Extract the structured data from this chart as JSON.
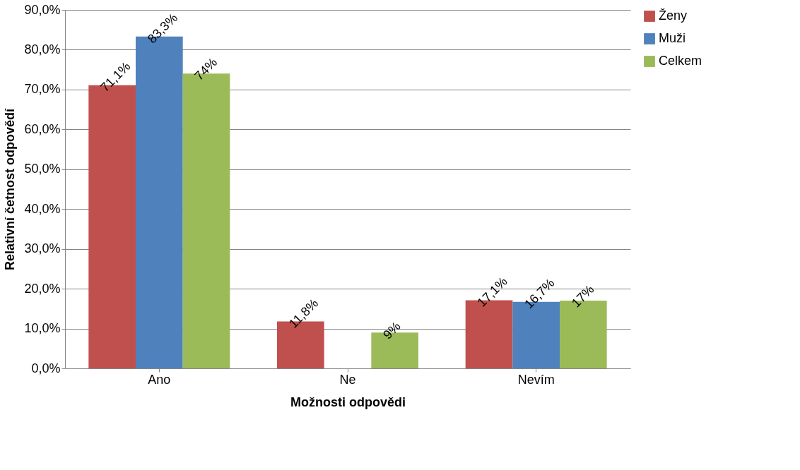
{
  "chart_data": {
    "type": "bar",
    "xlabel": "Možnosti odpovědi",
    "ylabel": "Relativní četnost odpovědí",
    "categories": [
      "Ano",
      "Ne",
      "Nevím"
    ],
    "series": [
      {
        "name": "Ženy",
        "color": "#c0504d",
        "values": [
          71.1,
          11.8,
          17.1
        ],
        "value_labels": [
          "71,1%",
          "11,8%",
          "17,1%"
        ]
      },
      {
        "name": "Muži",
        "color": "#4f81bd",
        "values": [
          83.3,
          null,
          16.7
        ],
        "value_labels": [
          "83,3%",
          null,
          "16,7%"
        ]
      },
      {
        "name": "Celkem",
        "color": "#9bbb59",
        "values": [
          74,
          9,
          17
        ],
        "value_labels": [
          "74%",
          "9%",
          "17%"
        ]
      }
    ],
    "ylim": [
      0,
      90
    ],
    "yticks": [
      {
        "value": 0,
        "label": "0,0%"
      },
      {
        "value": 10,
        "label": "10,0%"
      },
      {
        "value": 20,
        "label": "20,0%"
      },
      {
        "value": 30,
        "label": "30,0%"
      },
      {
        "value": 40,
        "label": "40,0%"
      },
      {
        "value": 50,
        "label": "50,0%"
      },
      {
        "value": 60,
        "label": "60,0%"
      },
      {
        "value": 70,
        "label": "70,0%"
      },
      {
        "value": 80,
        "label": "80,0%"
      },
      {
        "value": 90,
        "label": "90,0%"
      }
    ],
    "grid": "y",
    "legend": "right"
  }
}
